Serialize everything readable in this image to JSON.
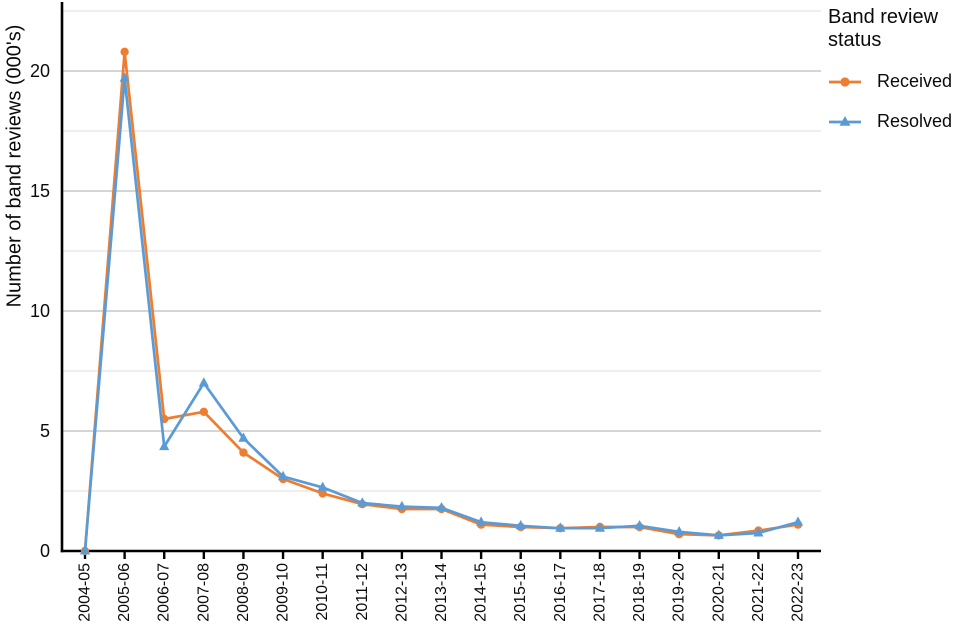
{
  "chart_data": {
    "type": "line",
    "title": "",
    "xlabel": "",
    "ylabel": "Number of band reviews (000's)",
    "categories": [
      "2004-05",
      "2005-06",
      "2006-07",
      "2007-08",
      "2008-09",
      "2009-10",
      "2010-11",
      "2011-12",
      "2012-13",
      "2013-14",
      "2014-15",
      "2015-16",
      "2016-17",
      "2017-18",
      "2018-19",
      "2019-20",
      "2020-21",
      "2021-22",
      "2022-23"
    ],
    "series": [
      {
        "name": "Received",
        "marker": "circle",
        "color": "#ED7D31",
        "values": [
          0,
          20.8,
          5.5,
          5.8,
          4.1,
          3.0,
          2.4,
          1.95,
          1.75,
          1.75,
          1.1,
          1.0,
          0.95,
          1.0,
          1.0,
          0.7,
          0.65,
          0.85,
          1.1
        ]
      },
      {
        "name": "Resolved",
        "marker": "triangle",
        "color": "#5B9BD5",
        "values": [
          0,
          19.7,
          4.35,
          7.0,
          4.7,
          3.1,
          2.65,
          2.0,
          1.85,
          1.8,
          1.2,
          1.05,
          0.95,
          0.95,
          1.05,
          0.8,
          0.65,
          0.75,
          1.2
        ]
      }
    ],
    "ylim": [
      0,
      22.7
    ],
    "yticks": [
      0,
      5,
      10,
      15,
      20
    ],
    "grid": {
      "minor_step": 2.5,
      "major_every": 5,
      "major_color": "#D5D5D5",
      "minor_color": "#E8E8E8",
      "orientation": "horizontal"
    },
    "legend": {
      "title": "Band review status",
      "position": "right"
    },
    "axis_color": "#000000"
  }
}
